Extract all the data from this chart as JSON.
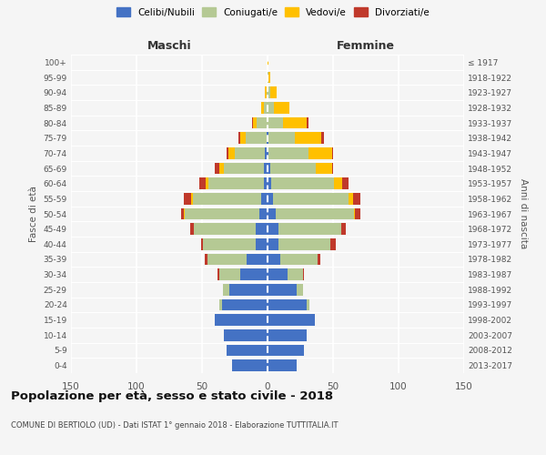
{
  "age_groups": [
    "0-4",
    "5-9",
    "10-14",
    "15-19",
    "20-24",
    "25-29",
    "30-34",
    "35-39",
    "40-44",
    "45-49",
    "50-54",
    "55-59",
    "60-64",
    "65-69",
    "70-74",
    "75-79",
    "80-84",
    "85-89",
    "90-94",
    "95-99",
    "100+"
  ],
  "birth_years": [
    "2013-2017",
    "2008-2012",
    "2003-2007",
    "1998-2002",
    "1993-1997",
    "1988-1992",
    "1983-1987",
    "1978-1982",
    "1973-1977",
    "1968-1972",
    "1963-1967",
    "1958-1962",
    "1953-1957",
    "1948-1952",
    "1943-1947",
    "1938-1942",
    "1933-1937",
    "1928-1932",
    "1923-1927",
    "1918-1922",
    "≤ 1917"
  ],
  "male": {
    "celibi": [
      27,
      31,
      33,
      40,
      35,
      29,
      21,
      16,
      9,
      9,
      6,
      5,
      3,
      3,
      2,
      1,
      0,
      0,
      0,
      0,
      0
    ],
    "coniugati": [
      0,
      0,
      0,
      0,
      2,
      5,
      16,
      30,
      40,
      47,
      57,
      52,
      42,
      30,
      23,
      16,
      8,
      3,
      1,
      0,
      0
    ],
    "vedovi": [
      0,
      0,
      0,
      0,
      0,
      0,
      0,
      0,
      0,
      0,
      1,
      1,
      2,
      4,
      5,
      4,
      3,
      2,
      1,
      0,
      0
    ],
    "divorziati": [
      0,
      0,
      0,
      0,
      0,
      0,
      1,
      2,
      2,
      3,
      2,
      6,
      5,
      3,
      1,
      1,
      1,
      0,
      0,
      0,
      0
    ]
  },
  "female": {
    "nubili": [
      22,
      28,
      30,
      36,
      30,
      22,
      15,
      10,
      8,
      8,
      6,
      4,
      3,
      2,
      1,
      1,
      0,
      0,
      0,
      0,
      0
    ],
    "coniugate": [
      0,
      0,
      0,
      0,
      2,
      5,
      12,
      28,
      40,
      48,
      60,
      58,
      48,
      35,
      30,
      20,
      12,
      5,
      2,
      1,
      0
    ],
    "vedove": [
      0,
      0,
      0,
      0,
      0,
      0,
      0,
      0,
      0,
      0,
      1,
      3,
      6,
      12,
      18,
      20,
      18,
      12,
      5,
      1,
      1
    ],
    "divorziate": [
      0,
      0,
      0,
      0,
      0,
      0,
      1,
      2,
      4,
      4,
      4,
      6,
      5,
      1,
      1,
      2,
      1,
      0,
      0,
      0,
      0
    ]
  },
  "colors": {
    "celibi": "#4472c4",
    "coniugati": "#b5c994",
    "vedovi": "#ffc000",
    "divorziati": "#c0392b"
  },
  "title": "Popolazione per età, sesso e stato civile - 2018",
  "subtitle": "COMUNE DI BERTIOLO (UD) - Dati ISTAT 1° gennaio 2018 - Elaborazione TUTTITALIA.IT",
  "xlabel_left": "Maschi",
  "xlabel_right": "Femmine",
  "ylabel_left": "Fasce di età",
  "ylabel_right": "Anni di nascita",
  "xlim": 150,
  "background_color": "#f5f5f5",
  "bar_height": 0.75
}
